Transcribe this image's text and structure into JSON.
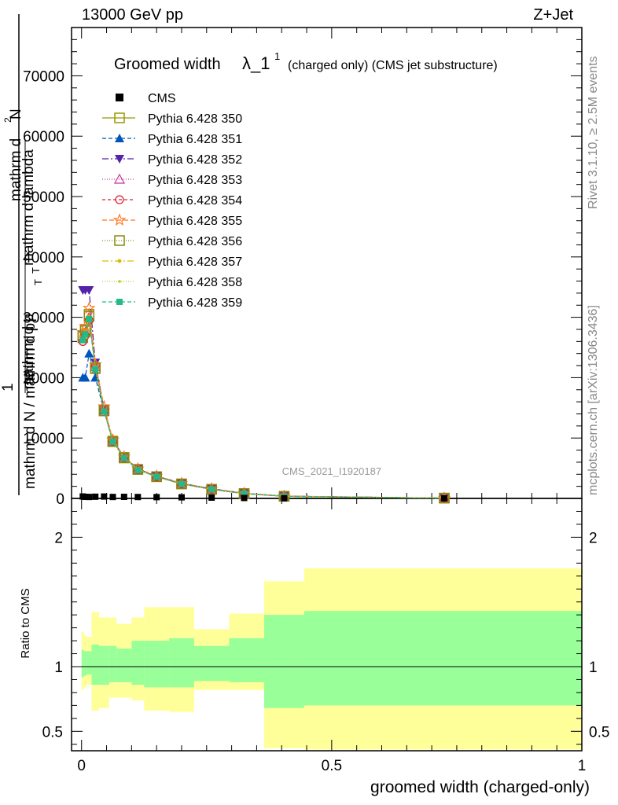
{
  "header": {
    "left": "13000 GeV pp",
    "right": "Z+Jet"
  },
  "side_labels": {
    "rivet": "Rivet 3.1.10, ≥ 2.5M events",
    "mcplots": "mcplots.cern.ch [arXiv:1306.3436]"
  },
  "chart_data": {
    "type": "scatter",
    "title": "Groomed width",
    "title_symbol": "λ_1",
    "title_superscript": "1",
    "subtitle": "(charged only) (CMS jet substructure)",
    "watermark": "CMS_2021_I1920187",
    "xlabel": "groomed width (charged-only)",
    "ylabel_numerator": "mathrm d²N",
    "ylabel_numerator_fragments": [
      "mathrm d",
      "N",
      "2"
    ],
    "ylabel_numerator_denominator": "mathrm d p_T mathrm d lambda",
    "ylabel_numerator_denominator_fragments": [
      "mathrm d p",
      "T",
      " mathrm d lambda"
    ],
    "ylabel_fraction_lhs": "1",
    "ylabel_fraction_rhs": "mathrm d N / mathrm d p",
    "ylabel_fraction_rhs_subscript": "T",
    "ratio_ylabel": "Ratio to CMS",
    "xlim": [
      -0.02,
      1.0
    ],
    "ylim": [
      0,
      78000
    ],
    "ratio_ylim": [
      0.35,
      2.3
    ],
    "x_ticks": [
      "0",
      "0.5",
      "1"
    ],
    "y_ticks": [
      "0",
      "10000",
      "20000",
      "30000",
      "40000",
      "50000",
      "60000",
      "70000"
    ],
    "y_tick_values": [
      0,
      10000,
      20000,
      30000,
      40000,
      50000,
      60000,
      70000
    ],
    "ratio_ticks": [
      "0.5",
      "1",
      "2"
    ],
    "ratio_tick_values": [
      0.5,
      1,
      2
    ],
    "x": [
      0.0025,
      0.0075,
      0.015,
      0.0275,
      0.045,
      0.0625,
      0.085,
      0.1125,
      0.15,
      0.2,
      0.26,
      0.325,
      0.405,
      0.725
    ],
    "cms": [
      320,
      260,
      240,
      280,
      310,
      240,
      260,
      230,
      210,
      180,
      130,
      70,
      30,
      5
    ],
    "cms_bins": [
      [
        0.0,
        0.005
      ],
      [
        0.005,
        0.01
      ],
      [
        0.01,
        0.02
      ],
      [
        0.02,
        0.035
      ],
      [
        0.035,
        0.055
      ],
      [
        0.055,
        0.07
      ],
      [
        0.07,
        0.1
      ],
      [
        0.1,
        0.125
      ],
      [
        0.125,
        0.175
      ],
      [
        0.175,
        0.225
      ],
      [
        0.225,
        0.295
      ],
      [
        0.295,
        0.365
      ],
      [
        0.365,
        0.445
      ],
      [
        0.445,
        1.0
      ]
    ],
    "band_outer": [
      [
        0.82,
        1.27
      ],
      [
        0.84,
        1.24
      ],
      [
        0.86,
        1.23
      ],
      [
        0.66,
        1.42
      ],
      [
        0.68,
        1.38
      ],
      [
        0.76,
        1.38
      ],
      [
        0.76,
        1.33
      ],
      [
        0.74,
        1.38
      ],
      [
        0.66,
        1.46
      ],
      [
        0.65,
        1.46
      ],
      [
        0.82,
        1.29
      ],
      [
        0.82,
        1.41
      ],
      [
        0.37,
        1.66
      ],
      [
        0.36,
        1.76
      ]
    ],
    "band_inner": [
      [
        0.92,
        1.13
      ],
      [
        0.93,
        1.12
      ],
      [
        0.94,
        1.12
      ],
      [
        0.86,
        1.17
      ],
      [
        0.86,
        1.16
      ],
      [
        0.88,
        1.16
      ],
      [
        0.88,
        1.14
      ],
      [
        0.86,
        1.2
      ],
      [
        0.84,
        1.2
      ],
      [
        0.84,
        1.22
      ],
      [
        0.89,
        1.16
      ],
      [
        0.88,
        1.22
      ],
      [
        0.68,
        1.4
      ],
      [
        0.7,
        1.43
      ]
    ],
    "series": [
      {
        "name": "Pythia 6.428 350",
        "color": "#999900",
        "marker": "square-open",
        "dash": "solid",
        "values": [
          27000,
          28000,
          30500,
          21500,
          14500,
          9500,
          6800,
          4800,
          3600,
          2400,
          1500,
          800,
          350,
          50
        ]
      },
      {
        "name": "Pythia 6.428 351",
        "color": "#0055bb",
        "marker": "triangle-up",
        "dash": "5,3",
        "values": [
          20000,
          20000,
          24000,
          20000,
          14500,
          9500,
          6800,
          4900,
          3700,
          2500,
          1600,
          850,
          380,
          55
        ]
      },
      {
        "name": "Pythia 6.428 352",
        "color": "#5522aa",
        "marker": "triangle-down",
        "dash": "8,3,2,3",
        "values": [
          34500,
          34500,
          34500,
          22500,
          14800,
          9600,
          6900,
          4900,
          3700,
          2500,
          1600,
          850,
          380,
          55
        ]
      },
      {
        "name": "Pythia 6.428 353",
        "color": "#cc3399",
        "marker": "triangle-open",
        "dash": "1,2",
        "values": [
          26500,
          27500,
          30000,
          21800,
          14600,
          9500,
          6800,
          4800,
          3600,
          2400,
          1500,
          800,
          350,
          50
        ]
      },
      {
        "name": "Pythia 6.428 354",
        "color": "#dd2233",
        "marker": "circle-open",
        "dash": "4,3",
        "values": [
          26000,
          27000,
          29500,
          22000,
          14700,
          9500,
          6800,
          4800,
          3600,
          2400,
          1500,
          800,
          350,
          50
        ]
      },
      {
        "name": "Pythia 6.428 355",
        "color": "#ff7722",
        "marker": "star-open",
        "dash": "6,3",
        "values": [
          27500,
          28500,
          31500,
          22200,
          15200,
          9700,
          6900,
          4900,
          3700,
          2500,
          1600,
          850,
          380,
          55
        ]
      },
      {
        "name": "Pythia 6.428 356",
        "color": "#888811",
        "marker": "square-open",
        "dash": "1,2",
        "values": [
          26800,
          27800,
          30200,
          21600,
          14500,
          9400,
          6700,
          4800,
          3600,
          2400,
          1500,
          800,
          350,
          50
        ]
      },
      {
        "name": "Pythia 6.428 357",
        "color": "#ddbb00",
        "marker": "dot",
        "dash": "8,3,2,3",
        "values": [
          26500,
          27500,
          30000,
          21700,
          14600,
          9500,
          6800,
          4800,
          3600,
          2400,
          1500,
          800,
          350,
          50
        ]
      },
      {
        "name": "Pythia 6.428 358",
        "color": "#bbcc22",
        "marker": "dot-small",
        "dash": "1,2",
        "values": [
          26300,
          27300,
          29800,
          21500,
          14500,
          9400,
          6700,
          4800,
          3600,
          2400,
          1500,
          800,
          350,
          50
        ]
      },
      {
        "name": "Pythia 6.428 359",
        "color": "#22bb88",
        "marker": "square-filled",
        "dash": "5,3",
        "values": [
          26200,
          27200,
          29700,
          21400,
          14400,
          9400,
          6700,
          4700,
          3600,
          2400,
          1500,
          800,
          350,
          50
        ]
      }
    ],
    "data_series": {
      "name": "CMS",
      "color": "#000000",
      "marker": "square-filled"
    },
    "band_colors": {
      "outer": "#ffff99",
      "inner": "#99ff99"
    }
  }
}
